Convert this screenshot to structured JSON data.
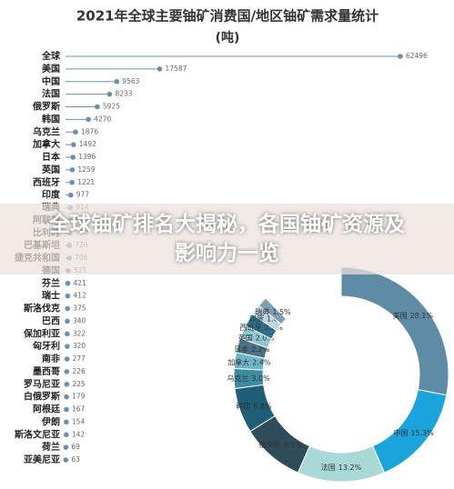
{
  "chart_data": [
    {
      "type": "lollipop",
      "title": "2021年全球主要铀矿消费国/地区铀矿需求量统计",
      "subtitle": "(吨)",
      "categories": [
        "全球",
        "美国",
        "中国",
        "法国",
        "俄罗斯",
        "韩国",
        "乌克兰",
        "加拿大",
        "日本",
        "英国",
        "西班牙",
        "印度",
        "瑞典",
        "阿联酋",
        "比利时",
        "巴基斯坦",
        "捷克共和国",
        "德国",
        "芬兰",
        "瑞士",
        "斯洛伐克",
        "巴西",
        "保加利亚",
        "匈牙利",
        "南非",
        "墨西哥",
        "罗马尼亚",
        "白俄罗斯",
        "阿根廷",
        "伊朗",
        "斯洛文尼亚",
        "荷兰",
        "亚美尼亚"
      ],
      "values": [
        62496,
        17587,
        9563,
        8233,
        5925,
        4270,
        1876,
        1492,
        1396,
        1259,
        1221,
        977,
        914,
        870,
        790,
        720,
        706,
        521,
        421,
        412,
        375,
        340,
        322,
        320,
        277,
        226,
        225,
        179,
        167,
        154,
        142,
        69,
        63
      ],
      "color": "#6b8fae",
      "xlim": [
        0,
        65000
      ]
    },
    {
      "type": "pie",
      "categories": [
        "美国",
        "中国",
        "法国",
        "俄罗斯",
        "韩国",
        "乌克兰",
        "加拿大",
        "日本",
        "英国",
        "西班牙",
        "印度",
        "瑞典"
      ],
      "values": [
        28.1,
        15.3,
        13.2,
        9.5,
        6.8,
        3.0,
        2.4,
        2.2,
        2.0,
        2.0,
        1.6,
        1.5
      ],
      "value_labels": [
        "28.1%",
        "15.3%",
        "13.2%",
        "9.5%",
        "6.8%",
        "3.0%",
        "2.4%",
        "2.2%",
        "2.0%",
        "2.0%",
        "1.6%",
        "1.5%"
      ],
      "colors": [
        "#5e8ca6",
        "#1ba3dc",
        "#a9d9d7",
        "#2f4c5c",
        "#1f5e78",
        "#3d8aa3",
        "#6fb5c9",
        "#4a7486",
        "#8cc8d4",
        "#2c6f8a",
        "#b7d7e2",
        "#7aa0b2"
      ]
    }
  ],
  "overlay": {
    "headline": "全球铀矿排名大揭秘，各国铀矿资源及影响力一览"
  }
}
